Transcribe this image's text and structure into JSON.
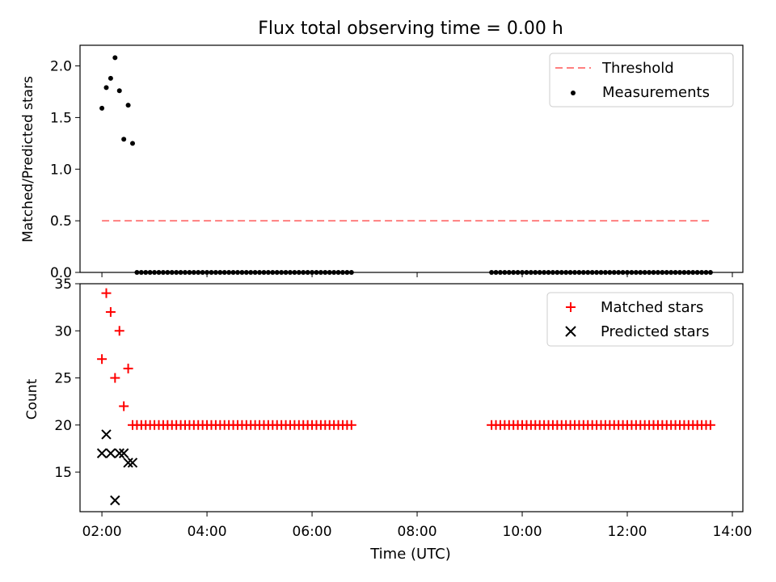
{
  "figure": {
    "title": "Flux total observing time = 0.00 h",
    "xlabel": "Time (UTC)"
  },
  "colors": {
    "threshold": "#ff7f7f",
    "measurements": "#000000",
    "matched": "#ff0000",
    "predicted": "#000000"
  },
  "chart_data": [
    {
      "type": "scatter",
      "panel": "top",
      "ylabel": "Matched/Predicted stars",
      "xlim": [
        "01:35",
        "14:12"
      ],
      "ylim": [
        0,
        2.2
      ],
      "yticks": [
        0.0,
        0.5,
        1.0,
        1.5,
        2.0
      ],
      "ytick_labels": [
        "0.0",
        "0.5",
        "1.0",
        "1.5",
        "2.0"
      ],
      "legend": {
        "placement": "top-right",
        "entries": [
          "Threshold",
          "Measurements"
        ]
      },
      "threshold": {
        "name": "Threshold",
        "value": 0.5,
        "x_start": "02:00",
        "x_end": "13:35",
        "style": "dashed"
      },
      "series": [
        {
          "name": "Measurements",
          "marker": "dot",
          "points": [
            [
              "02:00",
              1.59
            ],
            [
              "02:05",
              1.79
            ],
            [
              "02:10",
              1.88
            ],
            [
              "02:15",
              2.08
            ],
            [
              "02:20",
              1.76
            ],
            [
              "02:25",
              1.29
            ],
            [
              "02:30",
              1.62
            ],
            [
              "02:35",
              1.25
            ]
          ],
          "zero_runs": [
            {
              "start": "02:40",
              "end": "06:45",
              "step_min": 5,
              "value": 0
            },
            {
              "start": "09:25",
              "end": "13:35",
              "step_min": 5,
              "value": 0
            }
          ]
        }
      ]
    },
    {
      "type": "scatter",
      "panel": "bottom",
      "ylabel": "Count",
      "xlim": [
        "01:35",
        "14:12"
      ],
      "ylim": [
        10.8,
        35
      ],
      "yticks": [
        15,
        20,
        25,
        30,
        35
      ],
      "ytick_labels": [
        "15",
        "20",
        "25",
        "30",
        "35"
      ],
      "xticks": [
        "02:00",
        "04:00",
        "06:00",
        "08:00",
        "10:00",
        "12:00",
        "14:00"
      ],
      "legend": {
        "placement": "top-right",
        "entries": [
          "Matched stars",
          "Predicted stars"
        ]
      },
      "series": [
        {
          "name": "Matched stars",
          "marker": "plus",
          "points": [
            [
              "02:00",
              27
            ],
            [
              "02:05",
              34
            ],
            [
              "02:10",
              32
            ],
            [
              "02:15",
              25
            ],
            [
              "02:20",
              30
            ],
            [
              "02:25",
              22
            ],
            [
              "02:30",
              26
            ],
            [
              "02:35",
              20
            ]
          ],
          "constant_runs": [
            {
              "start": "02:40",
              "end": "06:45",
              "step_min": 5,
              "value": 20
            },
            {
              "start": "09:25",
              "end": "13:35",
              "step_min": 5,
              "value": 20
            }
          ]
        },
        {
          "name": "Predicted stars",
          "marker": "x",
          "points": [
            [
              "02:00",
              17
            ],
            [
              "02:05",
              19
            ],
            [
              "02:10",
              17
            ],
            [
              "02:15",
              12
            ],
            [
              "02:20",
              17
            ],
            [
              "02:25",
              17
            ],
            [
              "02:30",
              16
            ],
            [
              "02:35",
              16
            ]
          ]
        }
      ]
    }
  ]
}
